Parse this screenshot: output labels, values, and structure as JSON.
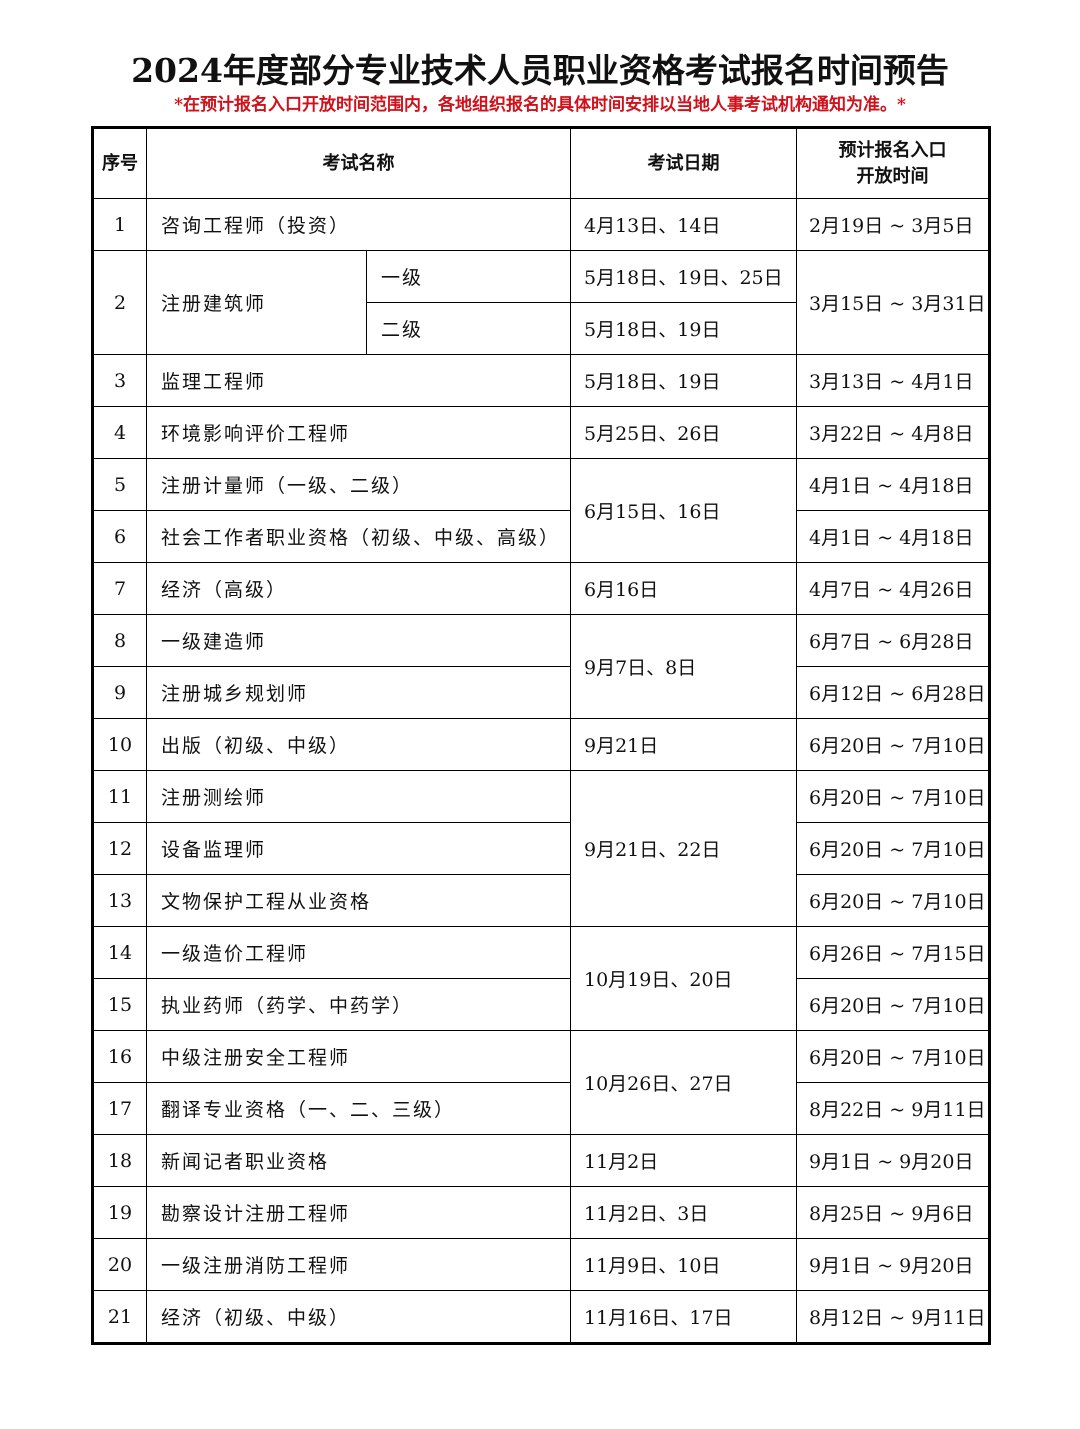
{
  "title": "2024年度部分专业技术人员职业资格考试报名时间预告",
  "notice": "*在预计报名入口开放时间范围内，各地组织报名的具体时间安排以当地人事考试机构通知为准。*",
  "colors": {
    "notice": "#d0101a",
    "border": "#000000"
  },
  "table": {
    "headers": {
      "no": "序号",
      "name": "考试名称",
      "date": "考试日期",
      "reg_line1": "预计报名入口",
      "reg_line2": "开放时间"
    },
    "rows": [
      {
        "no": "1",
        "name": "咨询工程师（投资）",
        "date": "4月13日、14日",
        "reg": "2月19日 ~ 3月5日"
      },
      {
        "no": "2",
        "name": "注册建筑师",
        "subs": [
          {
            "level": "一级",
            "date": "5月18日、19日、25日"
          },
          {
            "level": "二级",
            "date": "5月18日、19日"
          }
        ],
        "reg": "3月15日 ~ 3月31日"
      },
      {
        "no": "3",
        "name": "监理工程师",
        "date": "5月18日、19日",
        "reg": "3月13日 ~ 4月1日"
      },
      {
        "no": "4",
        "name": "环境影响评价工程师",
        "date": "5月25日、26日",
        "reg": "3月22日 ~ 4月8日"
      },
      {
        "no": "5",
        "name": "注册计量师（一级、二级）",
        "date": "6月15日、16日",
        "reg": "4月1日 ~ 4月18日"
      },
      {
        "no": "6",
        "name": "社会工作者职业资格（初级、中级、高级）",
        "date": "6月15日、16日",
        "reg": "4月1日 ~ 4月18日"
      },
      {
        "no": "7",
        "name": "经济（高级）",
        "date": "6月16日",
        "reg": "4月7日 ~ 4月26日"
      },
      {
        "no": "8",
        "name": "一级建造师",
        "date": "9月7日、8日",
        "reg": "6月7日 ~ 6月28日"
      },
      {
        "no": "9",
        "name": "注册城乡规划师",
        "date": "9月7日、8日",
        "reg": "6月12日 ~ 6月28日"
      },
      {
        "no": "10",
        "name": "出版（初级、中级）",
        "date": "9月21日",
        "reg": "6月20日 ~ 7月10日"
      },
      {
        "no": "11",
        "name": "注册测绘师",
        "date": "9月21日、22日",
        "reg": "6月20日 ~ 7月10日"
      },
      {
        "no": "12",
        "name": "设备监理师",
        "date": "9月21日、22日",
        "reg": "6月20日 ~ 7月10日"
      },
      {
        "no": "13",
        "name": "文物保护工程从业资格",
        "date": "9月21日、22日",
        "reg": "6月20日 ~ 7月10日"
      },
      {
        "no": "14",
        "name": "一级造价工程师",
        "date": "10月19日、20日",
        "reg": "6月26日 ~ 7月15日"
      },
      {
        "no": "15",
        "name": "执业药师（药学、中药学）",
        "date": "10月19日、20日",
        "reg": "6月20日 ~ 7月10日"
      },
      {
        "no": "16",
        "name": "中级注册安全工程师",
        "date": "10月26日、27日",
        "reg": "6月20日 ~ 7月10日"
      },
      {
        "no": "17",
        "name": "翻译专业资格（一、二、三级）",
        "date": "10月26日、27日",
        "reg": "8月22日 ~ 9月11日"
      },
      {
        "no": "18",
        "name": "新闻记者职业资格",
        "date": "11月2日",
        "reg": "9月1日 ~ 9月20日"
      },
      {
        "no": "19",
        "name": "勘察设计注册工程师",
        "date": "11月2日、3日",
        "reg": "8月25日 ~ 9月6日"
      },
      {
        "no": "20",
        "name": "一级注册消防工程师",
        "date": "11月9日、10日",
        "reg": "9月1日 ~ 9月20日"
      },
      {
        "no": "21",
        "name": "经济（初级、中级）",
        "date": "11月16日、17日",
        "reg": "8月12日 ~ 9月11日"
      }
    ]
  }
}
